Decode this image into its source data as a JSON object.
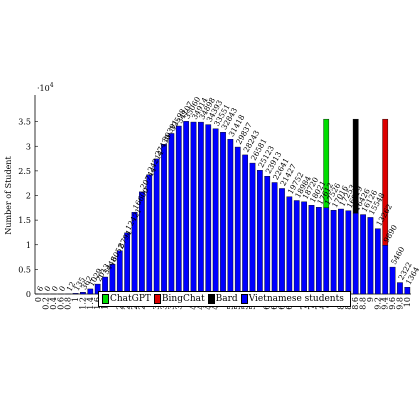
{
  "chart_data": {
    "type": "bar",
    "ylabel": "Number of Student",
    "multiplier": "·10^4",
    "multiplier_text": "·10",
    "multiplier_exp": "4",
    "ylim": [
      0,
      40000
    ],
    "yticks": [
      0,
      5000,
      10000,
      15000,
      20000,
      25000,
      30000,
      35000
    ],
    "ytick_labels": [
      "0",
      "0.5",
      "1",
      "1.5",
      "2",
      "2.5",
      "3",
      "3.5"
    ],
    "categories": [
      "0",
      "0.2",
      "0.4",
      "0.6",
      "0.8",
      "1",
      "1.2",
      "1.4",
      "1.6",
      "1.8",
      "2",
      "2.2",
      "2.4",
      "2.6",
      "2.8",
      "3",
      "3.2",
      "3.4",
      "3.6",
      "3.8",
      "4",
      "4.2",
      "4.4",
      "4.6",
      "4.8",
      "5",
      "5.2",
      "5.4",
      "5.6",
      "5.8",
      "6",
      "6.2",
      "6.4",
      "6.6",
      "6.8",
      "7",
      "7.2",
      "7.4",
      "7.6",
      "7.8",
      "8",
      "8.2",
      "8.4",
      "8.6",
      "8.8",
      "9",
      "9.2",
      "9.4",
      "9.6",
      "9.8",
      "10"
    ],
    "series": [
      {
        "name": "Vietnamese students",
        "color": "#0000ff",
        "values": [
          6,
          0,
          0,
          0,
          12,
          135,
          362,
          1029,
          2013,
          3448,
          6052,
          8794,
          12421,
          16600,
          20744,
          24214,
          27430,
          30391,
          32598,
          34107,
          35060,
          34914,
          34898,
          34393,
          33551,
          32843,
          31418,
          29837,
          28243,
          26581,
          25123,
          23913,
          22641,
          21427,
          19752,
          18984,
          18720,
          18021,
          17612,
          17526,
          17016,
          17253,
          16919,
          16426,
          16126,
          15548,
          13262,
          9890,
          5460,
          2322,
          1364
        ]
      }
    ],
    "highlights": [
      {
        "name": "ChatGPT",
        "category": "7.8",
        "value": 35500,
        "color": "#00dd00"
      },
      {
        "name": "Bard",
        "category": "8.6",
        "value": 35500,
        "color": "#000000"
      },
      {
        "name": "BingChat",
        "category": "9.4",
        "value": 35500,
        "color": "#dd0000"
      }
    ],
    "legend": {
      "placement": "bottom-center",
      "entries": [
        {
          "name": "ChatGPT",
          "color": "#00dd00"
        },
        {
          "name": "BingChat",
          "color": "#dd0000"
        },
        {
          "name": "Bard",
          "color": "#000000"
        },
        {
          "name": "Vietnamese students",
          "color": "#0000ff"
        }
      ]
    },
    "grid": false
  }
}
